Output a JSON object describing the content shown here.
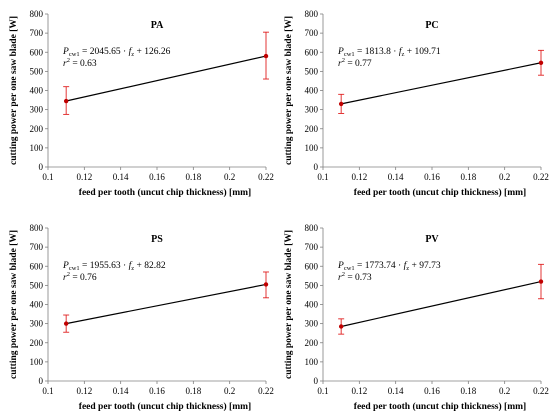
{
  "chart_data": [
    {
      "type": "line",
      "title": "PA",
      "xlabel": "feed per tooth (uncut chip thickness) [mm]",
      "ylabel": "cutting power per one saw blade [W]",
      "xlim": [
        0.1,
        0.22
      ],
      "ylim": [
        0,
        800
      ],
      "xticks": [
        "0.1",
        "0.12",
        "0.14",
        "0.16",
        "0.18",
        "0.2",
        "0.22"
      ],
      "yticks": [
        "0",
        "100",
        "200",
        "300",
        "400",
        "500",
        "600",
        "700",
        "800"
      ],
      "grid": false,
      "annotation": {
        "lhs": "P",
        "lhs_sub": "cw1",
        "rhs_a": " = 2045.65 · ",
        "var": "f",
        "var_sub": "z",
        "rhs_b": " + 126.26",
        "r2_var": "r",
        "r2_sup": "2",
        "r2_rhs": " = 0.63"
      },
      "points": [
        {
          "x": 0.11,
          "y": 345,
          "err_low": 275,
          "err_high": 420
        },
        {
          "x": 0.22,
          "y": 580,
          "err_low": 460,
          "err_high": 705
        }
      ]
    },
    {
      "type": "line",
      "title": "PC",
      "xlabel": "feed per tooth (uncut chip thickness) [mm]",
      "ylabel": "cutting power per one saw blade [W]",
      "xlim": [
        0.1,
        0.22
      ],
      "ylim": [
        0,
        800
      ],
      "xticks": [
        "0.1",
        "0.12",
        "0.14",
        "0.16",
        "0.18",
        "0.2",
        "0.22"
      ],
      "yticks": [
        "0",
        "100",
        "200",
        "300",
        "400",
        "500",
        "600",
        "700",
        "800"
      ],
      "grid": false,
      "annotation": {
        "lhs": "P",
        "lhs_sub": "cw1",
        "rhs_a": " = 1813.8 · ",
        "var": "f",
        "var_sub": "z",
        "rhs_b": " + 109.71",
        "r2_var": "r",
        "r2_sup": "2",
        "r2_rhs": " = 0.77"
      },
      "points": [
        {
          "x": 0.11,
          "y": 330,
          "err_low": 280,
          "err_high": 380
        },
        {
          "x": 0.22,
          "y": 545,
          "err_low": 480,
          "err_high": 610
        }
      ]
    },
    {
      "type": "line",
      "title": "PS",
      "xlabel": "feed per tooth (uncut chip thickness) [mm]",
      "ylabel": "cutting power per one saw blade [W]",
      "xlim": [
        0.1,
        0.22
      ],
      "ylim": [
        0,
        800
      ],
      "xticks": [
        "0.1",
        "0.12",
        "0.14",
        "0.16",
        "0.18",
        "0.2",
        "0.22"
      ],
      "yticks": [
        "0",
        "100",
        "200",
        "300",
        "400",
        "500",
        "600",
        "700",
        "800"
      ],
      "grid": false,
      "annotation": {
        "lhs": "P",
        "lhs_sub": "cw1",
        "rhs_a": " = 1955.63 · ",
        "var": "f",
        "var_sub": "z",
        "rhs_b": " + 82.82",
        "r2_var": "r",
        "r2_sup": "2",
        "r2_rhs": " = 0.76"
      },
      "points": [
        {
          "x": 0.11,
          "y": 300,
          "err_low": 255,
          "err_high": 345
        },
        {
          "x": 0.22,
          "y": 505,
          "err_low": 435,
          "err_high": 570
        }
      ]
    },
    {
      "type": "line",
      "title": "PV",
      "xlabel": "feed per tooth (uncut chip thickness) [mm]",
      "ylabel": "cutting power per one saw blade [W]",
      "xlim": [
        0.1,
        0.22
      ],
      "ylim": [
        0,
        800
      ],
      "xticks": [
        "0.1",
        "0.12",
        "0.14",
        "0.16",
        "0.18",
        "0.2",
        "0.22"
      ],
      "yticks": [
        "0",
        "100",
        "200",
        "300",
        "400",
        "500",
        "600",
        "700",
        "800"
      ],
      "grid": false,
      "annotation": {
        "lhs": "P",
        "lhs_sub": "cw1",
        "rhs_a": " = 1773.74 · ",
        "var": "f",
        "var_sub": "z",
        "rhs_b": " + 97.73",
        "r2_var": "r",
        "r2_sup": "2",
        "r2_rhs": " = 0.73"
      },
      "points": [
        {
          "x": 0.11,
          "y": 285,
          "err_low": 245,
          "err_high": 325
        },
        {
          "x": 0.22,
          "y": 520,
          "err_low": 430,
          "err_high": 610
        }
      ]
    }
  ],
  "colors": {
    "line": "#000000",
    "marker": "#c00000",
    "error_bar": "#e02020",
    "axis": "#808080"
  }
}
